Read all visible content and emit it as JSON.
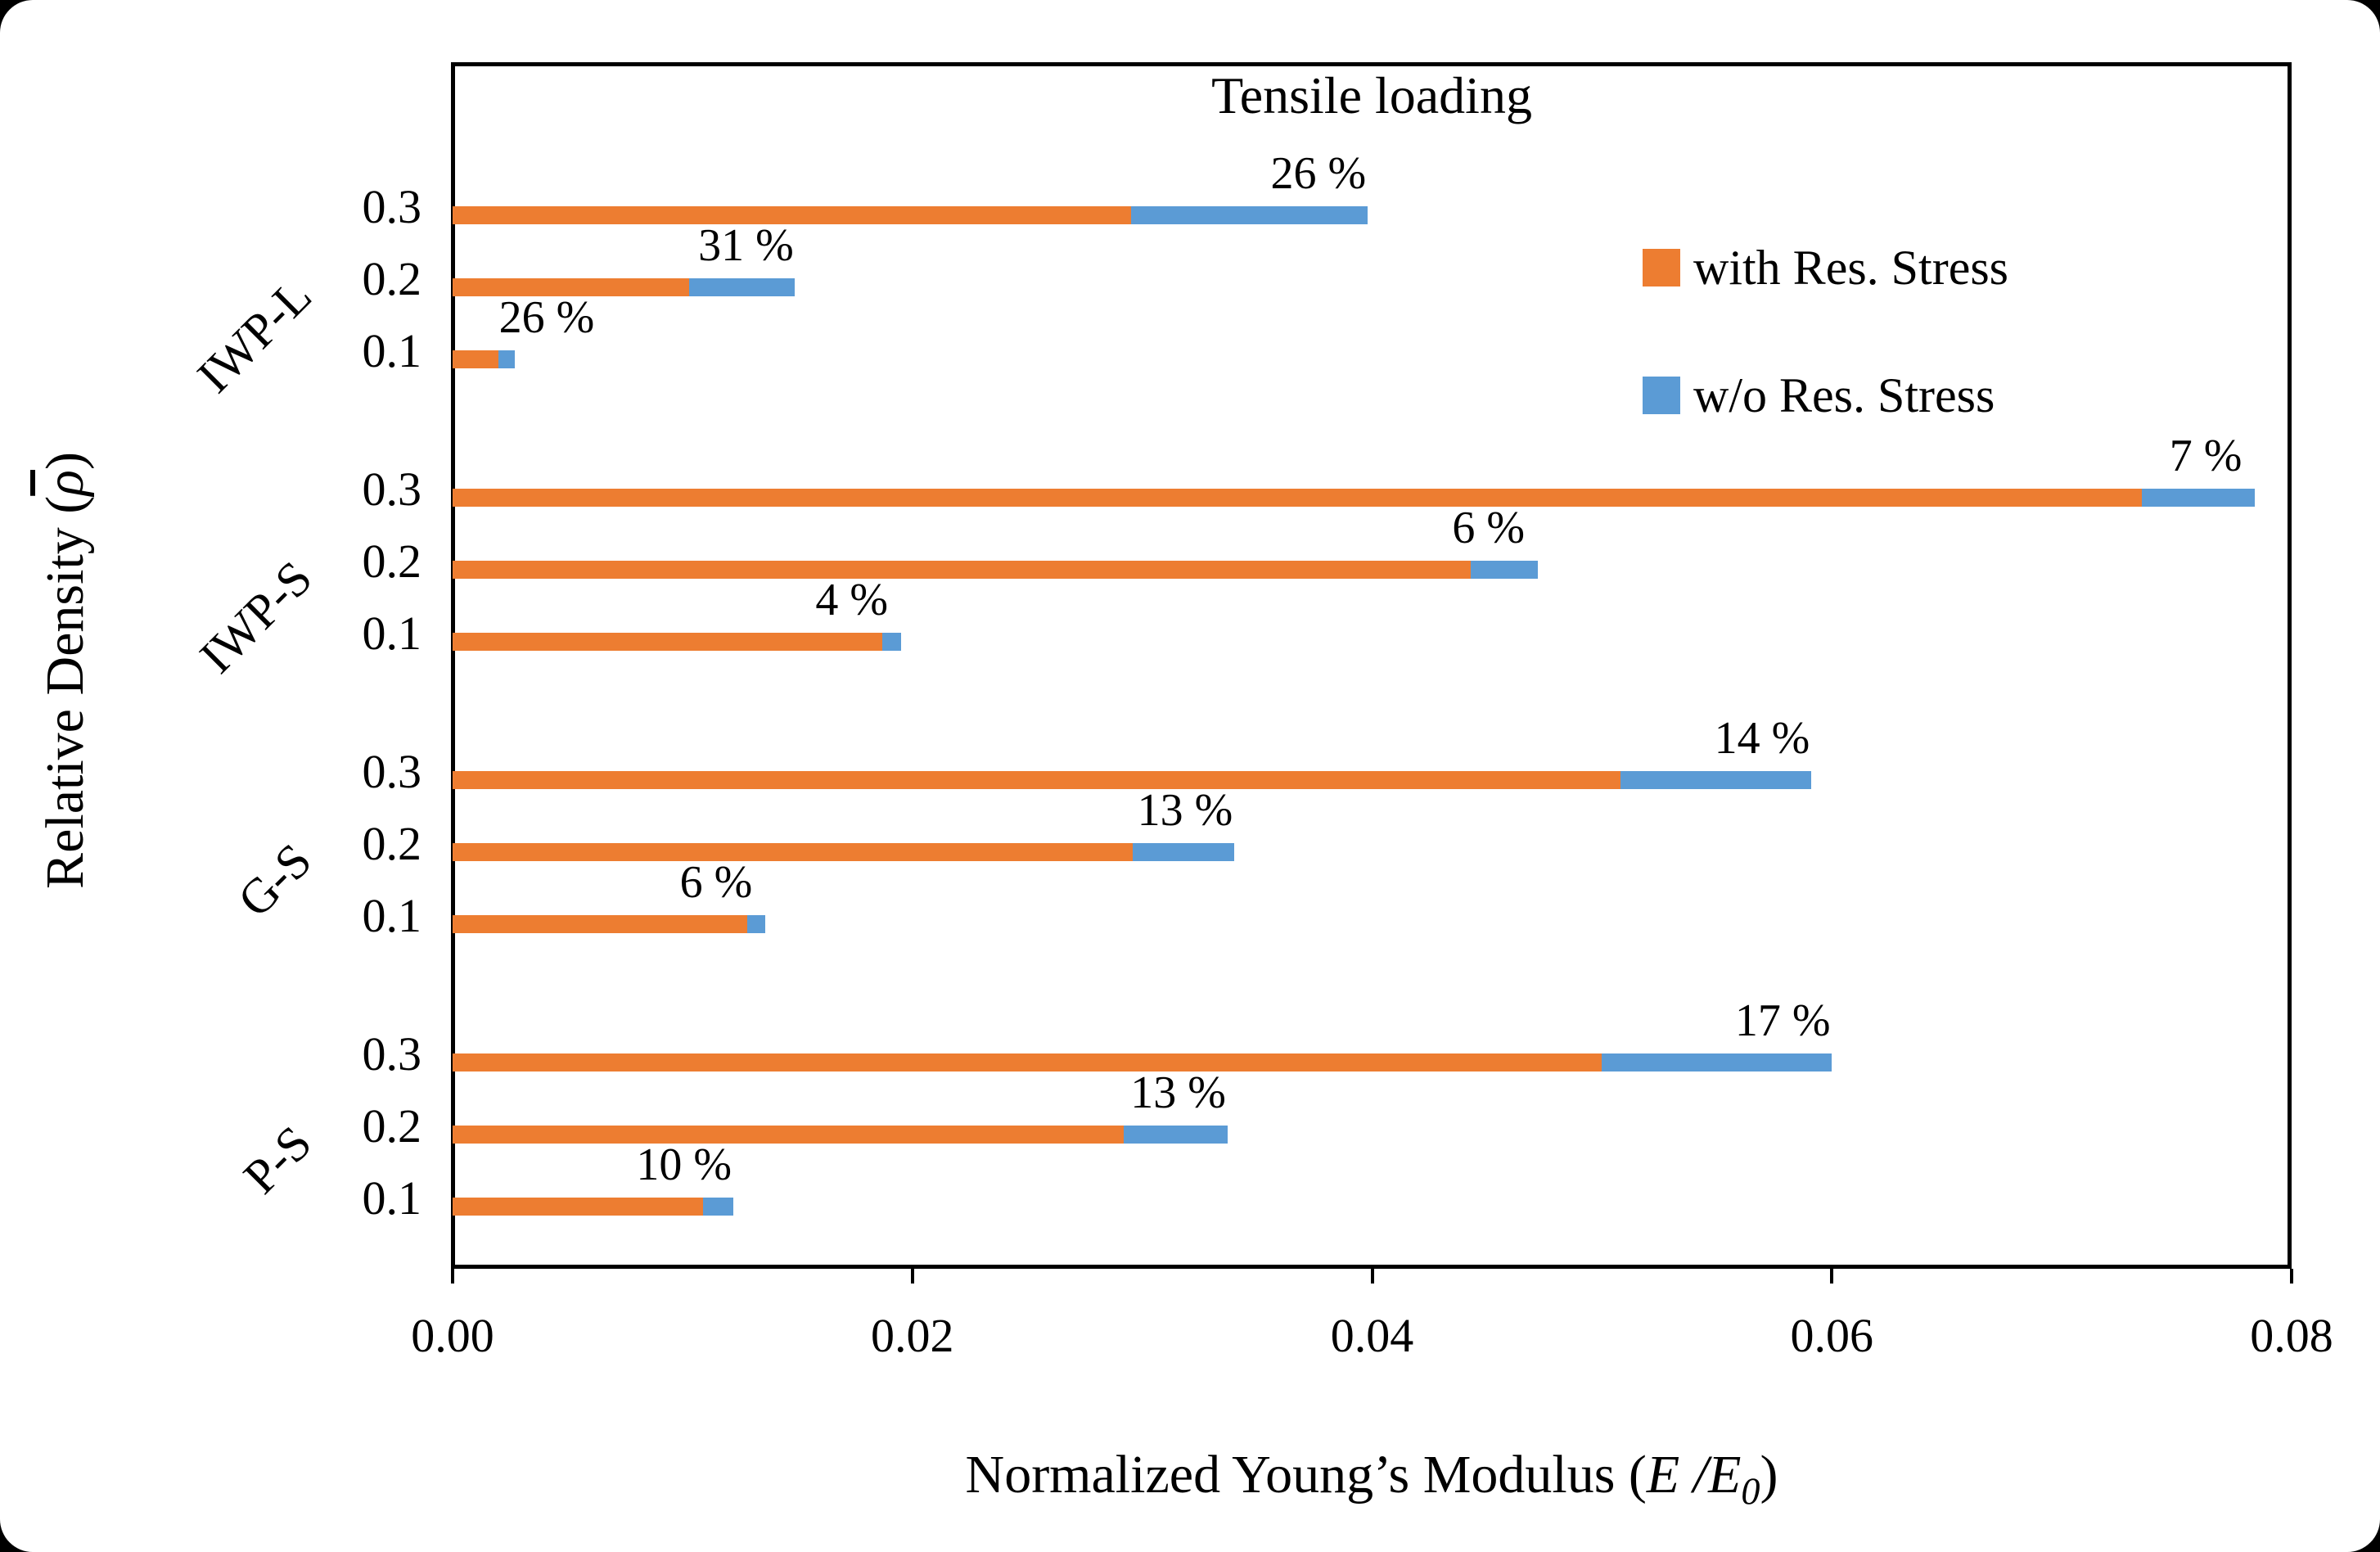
{
  "colors": {
    "with_res_stress": "#ED7D31",
    "wo_res_stress": "#5B9BD5",
    "axis": "#000000",
    "background": "#FFFFFF"
  },
  "labels": {
    "title": "Tensile loading",
    "xlabel_prefix": "Normalized Young’s Modulus (",
    "xlabel_e1": "E",
    "xlabel_slash": " /",
    "xlabel_e2": "E",
    "xlabel_sub": "0",
    "xlabel_suffix": ")",
    "ylabel_prefix": "Relative Density (",
    "ylabel_symbol": "ρ",
    "ylabel_suffix": ")"
  },
  "chart_data": {
    "type": "bar",
    "orientation": "horizontal",
    "title": "Tensile loading",
    "xlabel": "Normalized Young's Modulus (E/E0)",
    "ylabel": "Relative Density (rho-bar)",
    "xlim": [
      0,
      0.08
    ],
    "x_ticks": [
      "0.00",
      "0.02",
      "0.04",
      "0.06",
      "0.08"
    ],
    "x_tick_values": [
      0,
      0.02,
      0.04,
      0.06,
      0.08
    ],
    "grid": false,
    "legend_position": "upper right inside",
    "legend": [
      {
        "label": "with Res. Stress",
        "color": "#ED7D31"
      },
      {
        "label": "w/o Res. Stress",
        "color": "#5B9BD5"
      }
    ],
    "groups": [
      {
        "name": "IWP-L",
        "rows": [
          {
            "density": "0.3",
            "with_res": 0.0295,
            "wo_res": 0.0398,
            "pct_label": "26 %"
          },
          {
            "density": "0.2",
            "with_res": 0.0103,
            "wo_res": 0.0149,
            "pct_label": "31 %"
          },
          {
            "density": "0.1",
            "with_res": 0.002,
            "wo_res": 0.0027,
            "pct_label": "26 %"
          }
        ]
      },
      {
        "name": "IWP-S",
        "rows": [
          {
            "density": "0.3",
            "with_res": 0.0735,
            "wo_res": 0.0784,
            "pct_label": "7 %"
          },
          {
            "density": "0.2",
            "with_res": 0.0443,
            "wo_res": 0.0472,
            "pct_label": "6 %"
          },
          {
            "density": "0.1",
            "with_res": 0.0187,
            "wo_res": 0.0195,
            "pct_label": "4 %"
          }
        ]
      },
      {
        "name": "G-S",
        "rows": [
          {
            "density": "0.3",
            "with_res": 0.0508,
            "wo_res": 0.0591,
            "pct_label": "14 %"
          },
          {
            "density": "0.2",
            "with_res": 0.0296,
            "wo_res": 0.034,
            "pct_label": "13 %"
          },
          {
            "density": "0.1",
            "with_res": 0.0128,
            "wo_res": 0.0136,
            "pct_label": "6 %"
          }
        ]
      },
      {
        "name": "P-S",
        "rows": [
          {
            "density": "0.3",
            "with_res": 0.05,
            "wo_res": 0.06,
            "pct_label": "17 %"
          },
          {
            "density": "0.2",
            "with_res": 0.0292,
            "wo_res": 0.0337,
            "pct_label": "13 %"
          },
          {
            "density": "0.1",
            "with_res": 0.0109,
            "wo_res": 0.0122,
            "pct_label": "10 %"
          }
        ]
      }
    ]
  }
}
